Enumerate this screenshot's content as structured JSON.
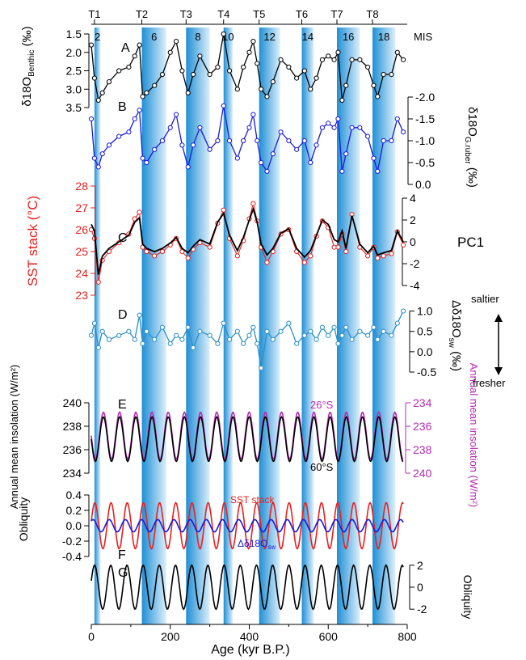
{
  "figure": {
    "terminations": [
      "T1",
      "T2",
      "T3",
      "T4",
      "T5",
      "T6",
      "T7",
      "T8"
    ],
    "mis_stages": [
      "2",
      "6",
      "8",
      "10",
      "12",
      "14",
      "16",
      "18"
    ],
    "mis_label": "MIS",
    "panel_letters": [
      "A",
      "B",
      "C",
      "D",
      "E",
      "F",
      "G"
    ],
    "x_axis": {
      "label": "Age (kyr B.P.)",
      "ticks": [
        "0",
        "200",
        "400",
        "600",
        "800"
      ],
      "range": [
        0,
        800
      ]
    },
    "colors": {
      "benthic": "#000000",
      "ruber": "#1a1ad8",
      "sst": "#e8201e",
      "pc1": "#000000",
      "dsw": "#2c8fc6",
      "insolation_26s": "#b52bb0",
      "insolation_60s": "#000000",
      "obliquity": "#000000",
      "band_dark": "#1f8fd6",
      "band_light": "#dceffb"
    },
    "glacial_bands_kyr": [
      [
        8,
        23
      ],
      [
        128,
        190
      ],
      [
        240,
        300
      ],
      [
        335,
        358
      ],
      [
        425,
        478
      ],
      [
        533,
        563
      ],
      [
        622,
        680
      ],
      [
        712,
        770
      ]
    ]
  },
  "chart_data": [
    {
      "panel": "A",
      "type": "line",
      "ylabel_main": "δ18O",
      "ylabel_sub": "Benthic",
      "ylabel_unit": "(‰)",
      "ylim": [
        3.5,
        1.5
      ],
      "y_reversed": true,
      "yticks": [
        "1.5",
        "2.0",
        "2.5",
        "3.0",
        "3.5"
      ],
      "series": [
        {
          "x": [
            0,
            8,
            18,
            28,
            45,
            70,
            95,
            110,
            122,
            130,
            140,
            160,
            180,
            200,
            215,
            230,
            245,
            258,
            275,
            300,
            320,
            335,
            350,
            370,
            385,
            400,
            410,
            420,
            430,
            445,
            460,
            480,
            500,
            520,
            540,
            555,
            570,
            585,
            600,
            615,
            625,
            635,
            645,
            660,
            680,
            700,
            715,
            725,
            740,
            760,
            775,
            790
          ],
          "y": [
            1.8,
            2.7,
            3.3,
            3.1,
            2.8,
            2.5,
            2.4,
            2.1,
            1.8,
            3.2,
            3.1,
            2.9,
            2.6,
            2.0,
            1.7,
            2.5,
            3.1,
            2.6,
            2.1,
            2.6,
            2.4,
            1.5,
            2.5,
            3.0,
            2.4,
            2.0,
            1.7,
            2.3,
            3.0,
            3.2,
            2.8,
            2.2,
            2.4,
            2.7,
            2.5,
            3.0,
            2.7,
            2.2,
            2.1,
            2.2,
            2.0,
            3.3,
            2.9,
            2.2,
            2.2,
            2.4,
            2.9,
            3.2,
            2.6,
            2.6,
            2.0,
            2.2
          ]
        }
      ]
    },
    {
      "panel": "B",
      "type": "line",
      "ylabel_main": "δ18O",
      "ylabel_sub": "G.ruber",
      "ylabel_unit": "(‰)",
      "ylim": [
        0.0,
        -2.0
      ],
      "y_reversed": true,
      "yticks": [
        "-2.0",
        "-1.5",
        "-1.0",
        "-0.5",
        "0.0"
      ],
      "series": [
        {
          "x": [
            0,
            8,
            18,
            28,
            45,
            70,
            95,
            110,
            122,
            130,
            140,
            160,
            180,
            200,
            215,
            230,
            245,
            258,
            275,
            300,
            320,
            335,
            350,
            370,
            385,
            400,
            410,
            420,
            430,
            445,
            460,
            480,
            500,
            520,
            540,
            555,
            570,
            585,
            600,
            615,
            625,
            635,
            645,
            660,
            680,
            700,
            715,
            725,
            740,
            760,
            775,
            790
          ],
          "y": [
            -1.5,
            -0.6,
            -0.4,
            -0.7,
            -0.9,
            -1.1,
            -1.2,
            -1.5,
            -1.7,
            -0.6,
            -0.5,
            -0.8,
            -1.0,
            -1.3,
            -1.6,
            -0.9,
            -0.4,
            -0.9,
            -1.3,
            -0.8,
            -1.0,
            -1.8,
            -1.0,
            -0.6,
            -1.0,
            -1.3,
            -1.6,
            -1.0,
            -0.5,
            -0.3,
            -0.7,
            -1.2,
            -1.0,
            -0.8,
            -1.0,
            -0.5,
            -0.9,
            -1.3,
            -1.4,
            -1.3,
            -1.5,
            -0.3,
            -0.7,
            -1.3,
            -1.3,
            -1.1,
            -0.6,
            -0.3,
            -1.0,
            -1.0,
            -1.5,
            -1.2
          ]
        }
      ]
    },
    {
      "panel": "C",
      "type": "line",
      "ylabel_left": "SST stack (°C)",
      "ylim_left": [
        23,
        28
      ],
      "yticks_left": [
        "23",
        "24",
        "25",
        "26",
        "27",
        "28"
      ],
      "ylabel_right": "PC1",
      "ylim_right": [
        -4,
        4
      ],
      "yticks_right": [
        "-4",
        "-2",
        "0",
        "2",
        "4"
      ],
      "series": [
        {
          "name": "SST stack",
          "axis": "left",
          "x": [
            0,
            8,
            18,
            28,
            45,
            70,
            95,
            110,
            122,
            130,
            140,
            160,
            180,
            200,
            215,
            230,
            245,
            258,
            275,
            300,
            320,
            335,
            350,
            370,
            385,
            400,
            410,
            420,
            430,
            445,
            460,
            480,
            500,
            520,
            540,
            555,
            570,
            585,
            600,
            615,
            625,
            635,
            645,
            660,
            680,
            700,
            715,
            725,
            740,
            760,
            775,
            790
          ],
          "y": [
            26.0,
            25.6,
            23.6,
            24.6,
            25.0,
            25.4,
            25.8,
            26.5,
            26.8,
            25.2,
            25.0,
            24.8,
            25.0,
            25.3,
            25.6,
            25.0,
            24.7,
            25.1,
            25.4,
            25.2,
            26.3,
            26.9,
            25.6,
            24.8,
            25.5,
            26.5,
            27.2,
            26.4,
            25.2,
            24.5,
            25.0,
            25.8,
            26.0,
            25.0,
            24.5,
            24.8,
            25.7,
            26.4,
            26.1,
            25.2,
            25.2,
            25.8,
            25.0,
            26.7,
            25.2,
            24.8,
            25.2,
            24.7,
            24.8,
            24.9,
            25.9,
            25.3
          ]
        },
        {
          "name": "PC1",
          "axis": "right",
          "x": [
            0,
            8,
            18,
            28,
            45,
            70,
            95,
            110,
            122,
            130,
            140,
            160,
            180,
            200,
            215,
            230,
            245,
            258,
            275,
            300,
            320,
            335,
            350,
            370,
            385,
            400,
            410,
            420,
            430,
            445,
            460,
            480,
            500,
            520,
            540,
            555,
            570,
            585,
            600,
            615,
            625,
            635,
            645,
            660,
            680,
            700,
            715,
            725,
            740,
            760,
            775,
            790
          ],
          "y": [
            1.6,
            1.0,
            -3.0,
            -1.3,
            -0.6,
            0.0,
            0.6,
            1.8,
            2.2,
            -0.2,
            -0.6,
            -0.9,
            -0.6,
            -0.1,
            0.4,
            -0.6,
            -1.0,
            -0.4,
            0.2,
            -0.2,
            1.8,
            2.6,
            0.6,
            -0.8,
            0.4,
            2.0,
            3.0,
            1.8,
            -0.2,
            -1.2,
            -0.6,
            0.8,
            1.2,
            -0.6,
            -1.4,
            -0.8,
            0.6,
            2.0,
            1.6,
            0.2,
            0.0,
            1.0,
            -0.6,
            2.4,
            -0.2,
            -1.0,
            -0.4,
            -1.2,
            -1.0,
            -0.8,
            1.0,
            0.0
          ]
        }
      ]
    },
    {
      "panel": "D",
      "type": "line",
      "ylabel_main": "Δδ18O",
      "ylabel_sub": "sw",
      "ylabel_unit": "(‰)",
      "ylim": [
        -0.5,
        1.25
      ],
      "yticks": [
        "-0.5",
        "0.0",
        "0.5",
        "1.0"
      ],
      "arrow_up_label": "saltier",
      "arrow_down_label": "fresher",
      "series": [
        {
          "x": [
            0,
            8,
            18,
            28,
            45,
            70,
            95,
            110,
            122,
            130,
            140,
            160,
            180,
            200,
            215,
            230,
            245,
            258,
            275,
            300,
            320,
            335,
            350,
            370,
            385,
            400,
            410,
            420,
            430,
            445,
            460,
            480,
            500,
            520,
            540,
            555,
            570,
            585,
            600,
            615,
            625,
            635,
            645,
            660,
            680,
            700,
            715,
            725,
            740,
            760,
            775,
            790
          ],
          "y": [
            0.4,
            0.7,
            0.1,
            0.5,
            0.3,
            0.4,
            0.5,
            0.3,
            0.9,
            0.2,
            0.5,
            0.3,
            0.6,
            0.2,
            0.4,
            0.3,
            0.6,
            0.1,
            0.5,
            0.4,
            0.2,
            0.7,
            0.3,
            0.5,
            0.2,
            0.4,
            0.6,
            0.2,
            -0.4,
            0.5,
            0.3,
            0.5,
            0.7,
            0.2,
            0.4,
            0.5,
            0.3,
            0.6,
            0.4,
            0.6,
            0.2,
            0.4,
            0.6,
            0.3,
            0.5,
            0.4,
            0.6,
            0.3,
            0.5,
            0.4,
            0.7,
            1.0
          ]
        }
      ]
    },
    {
      "panel": "E",
      "type": "line",
      "ylabel_left": "Annual mean insolation (W/m²)",
      "ylim_left": [
        234,
        240
      ],
      "yticks_left": [
        "234",
        "236",
        "238",
        "240"
      ],
      "ylabel_right": "Annual mean insolation (W/m²)",
      "ylim_right": [
        240,
        234
      ],
      "yticks_right": [
        "234",
        "236",
        "238",
        "240"
      ],
      "series": [
        {
          "name": "26°S",
          "axis": "right",
          "period_kyr": 41,
          "mean": 236.8,
          "amplitude": 2.0,
          "phase": 0.0
        },
        {
          "name": "60°S",
          "axis": "left",
          "period_kyr": 41,
          "mean": 236.9,
          "amplitude": 1.9,
          "phase": 3.14
        }
      ]
    },
    {
      "panel": "F",
      "type": "line",
      "ylabel_left": "Obliquity",
      "ylim_left": [
        -0.4,
        0.4
      ],
      "yticks_left": [
        "0.4",
        "0.2",
        "0.0",
        "-0.2",
        "-0.4"
      ],
      "series": [
        {
          "name": "SST stack",
          "period_kyr": 41,
          "mean": 0.0,
          "amplitude": 0.3,
          "phase": 0.2
        },
        {
          "name": "Δδ18O",
          "name_sub": "sw",
          "period_kyr": 41,
          "mean": 0.0,
          "amplitude": 0.08,
          "phase": 0.9
        }
      ]
    },
    {
      "panel": "G",
      "type": "line",
      "ylabel_right": "Obliquity",
      "ylim_right": [
        -2.5,
        2.5
      ],
      "yticks_right": [
        "2",
        "0",
        "-2"
      ],
      "series": [
        {
          "period_kyr": 41,
          "mean": 0.0,
          "amplitude": 2.0,
          "phase": 0.3
        }
      ]
    }
  ]
}
